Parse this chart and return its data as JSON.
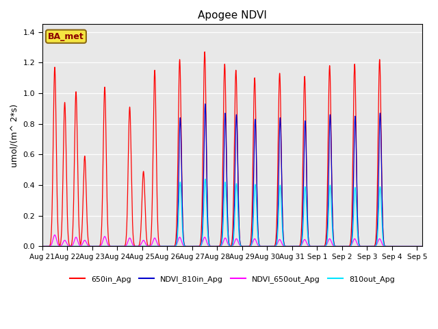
{
  "title": "Apogee NDVI",
  "ylabel": "umol/(m^ 2*s)",
  "bg_color": "#e8e8e8",
  "label_box": "BA_met",
  "ylim": [
    0,
    1.45
  ],
  "xlim": [
    21.0,
    36.2
  ],
  "series_order": [
    "650in_Apg",
    "NDVI_810in_Apg",
    "NDVI_650out_Apg",
    "810out_Apg"
  ],
  "series": {
    "650in_Apg": {
      "color": "#ff0000",
      "peaks": [
        {
          "day": 21.5,
          "val": 1.17
        },
        {
          "day": 21.9,
          "val": 0.94
        },
        {
          "day": 22.35,
          "val": 1.01
        },
        {
          "day": 22.7,
          "val": 0.59
        },
        {
          "day": 23.5,
          "val": 1.04
        },
        {
          "day": 24.5,
          "val": 0.91
        },
        {
          "day": 25.05,
          "val": 0.49
        },
        {
          "day": 25.5,
          "val": 1.15
        },
        {
          "day": 26.5,
          "val": 1.22
        },
        {
          "day": 27.5,
          "val": 1.27
        },
        {
          "day": 28.3,
          "val": 1.19
        },
        {
          "day": 28.75,
          "val": 1.15
        },
        {
          "day": 29.5,
          "val": 1.1
        },
        {
          "day": 30.5,
          "val": 1.13
        },
        {
          "day": 31.5,
          "val": 1.11
        },
        {
          "day": 32.5,
          "val": 1.18
        },
        {
          "day": 33.5,
          "val": 1.19
        },
        {
          "day": 34.5,
          "val": 1.22
        }
      ]
    },
    "NDVI_810in_Apg": {
      "color": "#0000cc",
      "peaks": [
        {
          "day": 26.52,
          "val": 0.84
        },
        {
          "day": 27.52,
          "val": 0.93
        },
        {
          "day": 28.32,
          "val": 0.87
        },
        {
          "day": 28.77,
          "val": 0.86
        },
        {
          "day": 29.52,
          "val": 0.83
        },
        {
          "day": 30.52,
          "val": 0.84
        },
        {
          "day": 31.52,
          "val": 0.82
        },
        {
          "day": 32.52,
          "val": 0.86
        },
        {
          "day": 33.52,
          "val": 0.85
        },
        {
          "day": 34.52,
          "val": 0.87
        }
      ]
    },
    "NDVI_650out_Apg": {
      "color": "#ff00ff",
      "peaks": [
        {
          "day": 21.5,
          "val": 0.075
        },
        {
          "day": 21.9,
          "val": 0.04
        },
        {
          "day": 22.35,
          "val": 0.06
        },
        {
          "day": 22.7,
          "val": 0.04
        },
        {
          "day": 23.5,
          "val": 0.065
        },
        {
          "day": 24.5,
          "val": 0.055
        },
        {
          "day": 25.05,
          "val": 0.04
        },
        {
          "day": 25.5,
          "val": 0.055
        },
        {
          "day": 26.5,
          "val": 0.06
        },
        {
          "day": 27.5,
          "val": 0.06
        },
        {
          "day": 28.32,
          "val": 0.055
        },
        {
          "day": 28.77,
          "val": 0.05
        },
        {
          "day": 29.5,
          "val": 0.05
        },
        {
          "day": 30.5,
          "val": 0.045
        },
        {
          "day": 31.5,
          "val": 0.045
        },
        {
          "day": 32.5,
          "val": 0.05
        },
        {
          "day": 33.5,
          "val": 0.05
        },
        {
          "day": 34.5,
          "val": 0.05
        }
      ]
    },
    "810out_Apg": {
      "color": "#00e5ff",
      "peaks": [
        {
          "day": 26.52,
          "val": 0.42
        },
        {
          "day": 27.52,
          "val": 0.44
        },
        {
          "day": 28.32,
          "val": 0.42
        },
        {
          "day": 28.77,
          "val": 0.41
        },
        {
          "day": 29.52,
          "val": 0.405
        },
        {
          "day": 30.52,
          "val": 0.4
        },
        {
          "day": 31.52,
          "val": 0.39
        },
        {
          "day": 32.52,
          "val": 0.4
        },
        {
          "day": 33.52,
          "val": 0.385
        },
        {
          "day": 34.52,
          "val": 0.39
        }
      ]
    }
  },
  "xtick_labels": [
    "Aug 21",
    "Aug 22",
    "Aug 23",
    "Aug 24",
    "Aug 25",
    "Aug 26",
    "Aug 27",
    "Aug 28",
    "Aug 29",
    "Aug 30",
    "Aug 31",
    "Sep 1",
    "Sep 2",
    "Sep 3",
    "Sep 4",
    "Sep 5"
  ],
  "xtick_days": [
    21,
    22,
    23,
    24,
    25,
    26,
    27,
    28,
    29,
    30,
    31,
    32,
    33,
    34,
    35,
    36
  ]
}
